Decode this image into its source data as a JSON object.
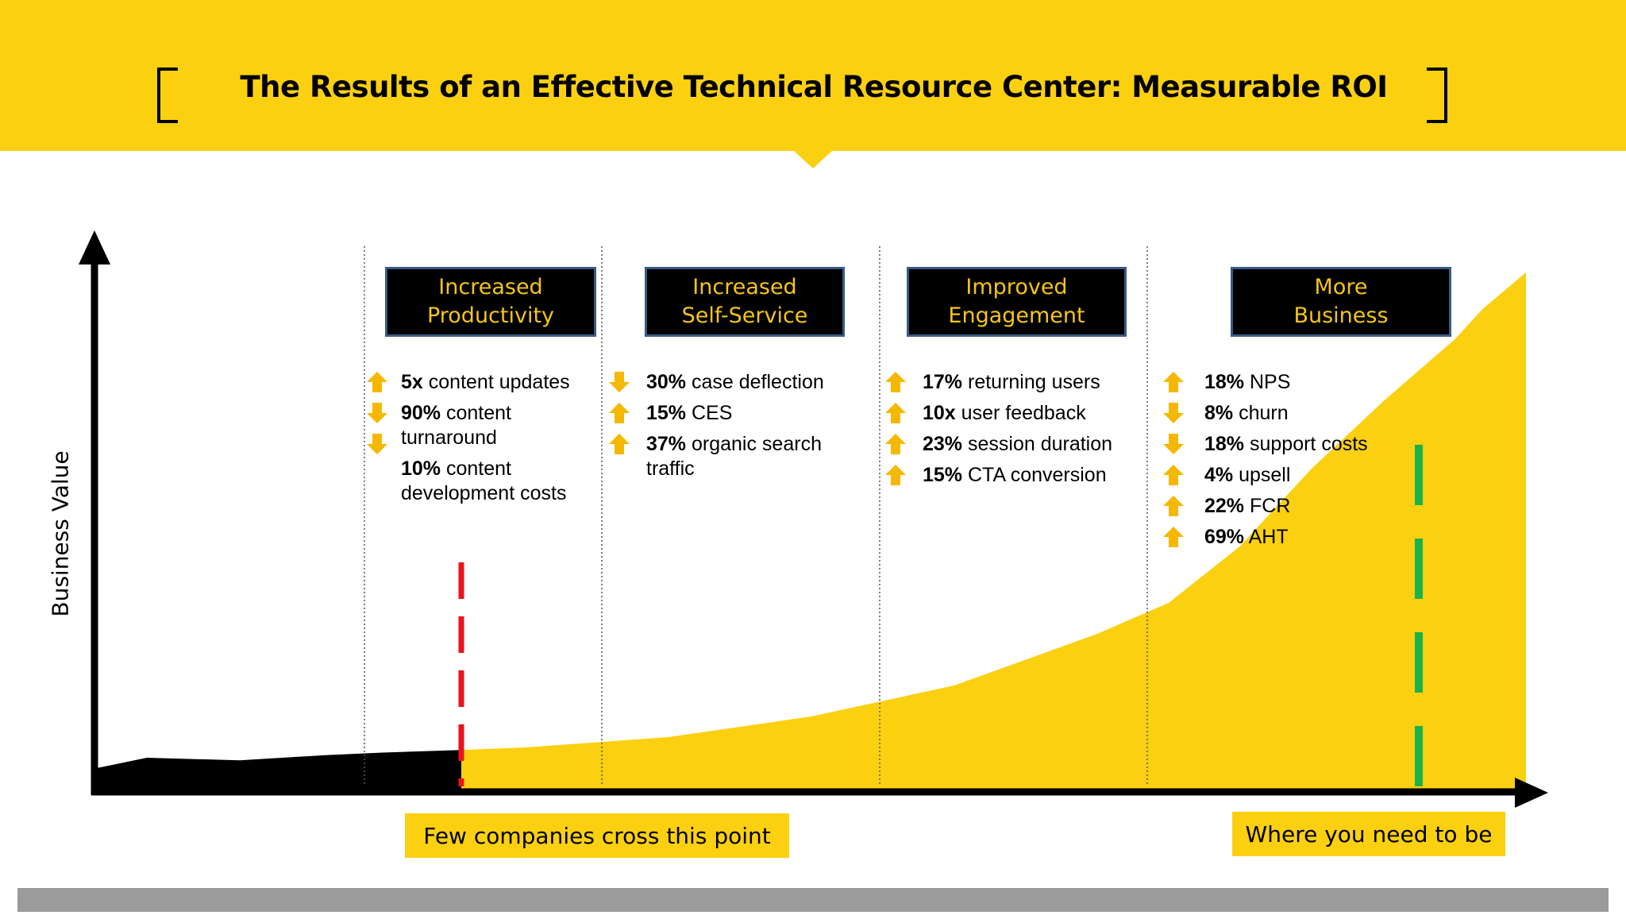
{
  "header": {
    "title": "The Results of an Effective Technical Resource Center: Measurable ROI",
    "color": "#fbd010"
  },
  "chart_data": {
    "type": "area",
    "ylabel": "Business Value",
    "xlabel": "",
    "series": [
      {
        "x": [
          0,
          0.035,
          0.1,
          0.16,
          0.2,
          0.255,
          0.3,
          0.4,
          0.5,
          0.6,
          0.7,
          0.75,
          0.8,
          0.85,
          0.9,
          0.95,
          0.97,
          1.0
        ],
        "y": [
          0.04,
          0.06,
          0.055,
          0.065,
          0.07,
          0.075,
          0.08,
          0.1,
          0.14,
          0.2,
          0.3,
          0.36,
          0.47,
          0.62,
          0.75,
          0.87,
          0.93,
          1.0
        ]
      }
    ],
    "threshold_x": 0.255,
    "target_x": 0.925,
    "colors": {
      "before": "#000000",
      "after": "#fbd010",
      "threshold": "#e8141b",
      "target": "#1ab24a"
    }
  },
  "phases": [
    {
      "label_lines": [
        "Increased",
        "Productivity"
      ],
      "metrics": [
        {
          "dir": "up",
          "value": "5x",
          "text": " content updates"
        },
        {
          "dir": "down",
          "value": "90%",
          "text": " content turnaround"
        },
        {
          "dir": "down",
          "value": "10%",
          "text": " content development costs"
        }
      ]
    },
    {
      "label_lines": [
        "Increased",
        "Self-Service"
      ],
      "metrics": [
        {
          "dir": "down",
          "value": "30%",
          "text": " case deflection"
        },
        {
          "dir": "up",
          "value": "15%",
          "text": " CES"
        },
        {
          "dir": "up",
          "value": "37%",
          "text": " organic search traffic"
        }
      ]
    },
    {
      "label_lines": [
        "Improved",
        "Engagement"
      ],
      "metrics": [
        {
          "dir": "up",
          "value": "17%",
          "text": " returning users"
        },
        {
          "dir": "up",
          "value": "10x",
          "text": " user feedback"
        },
        {
          "dir": "up",
          "value": "23%",
          "text": " session duration"
        },
        {
          "dir": "up",
          "value": "15%",
          "text": " CTA conversion"
        }
      ]
    },
    {
      "label_lines": [
        "More",
        "Business"
      ],
      "metrics": [
        {
          "dir": "up",
          "value": "18%",
          "text": " NPS"
        },
        {
          "dir": "down",
          "value": "8%",
          "text": " churn"
        },
        {
          "dir": "down",
          "value": "18%",
          "text": " support costs"
        },
        {
          "dir": "up",
          "value": "4%",
          "text": " upsell"
        },
        {
          "dir": "up",
          "value": "22%",
          "text": " FCR"
        },
        {
          "dir": "up",
          "value": "69%",
          "text": " AHT"
        }
      ]
    }
  ],
  "callouts": {
    "threshold": "Few companies cross this point",
    "target": "Where you need to be"
  },
  "arrow_color": "#f5b800"
}
